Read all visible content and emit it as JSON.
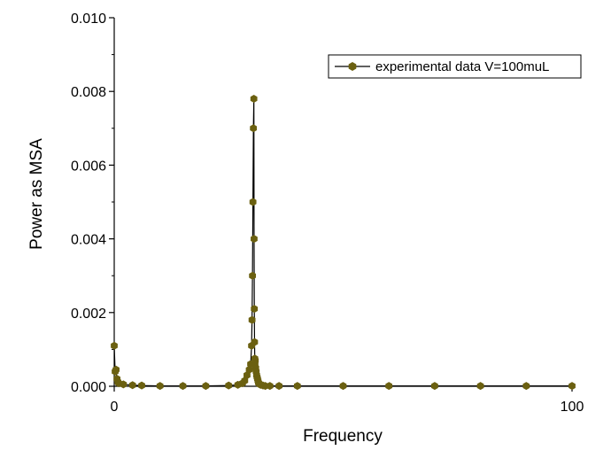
{
  "chart_data": {
    "type": "scatter",
    "title": "",
    "xlabel": "Frequency",
    "ylabel": "Power as MSA",
    "xlim": [
      0,
      100
    ],
    "ylim": [
      0,
      0.01
    ],
    "x_ticks": [
      {
        "value": 0,
        "label": "0"
      },
      {
        "value": 100,
        "label": "100"
      }
    ],
    "y_ticks": [
      {
        "value": 0,
        "label": "0.000"
      },
      {
        "value": 0.002,
        "label": "0.002"
      },
      {
        "value": 0.004,
        "label": "0.004"
      },
      {
        "value": 0.006,
        "label": "0.006"
      },
      {
        "value": 0.008,
        "label": "0.008"
      },
      {
        "value": 0.01,
        "label": "0.010"
      }
    ],
    "grid": false,
    "legend_position": "top-right",
    "series": [
      {
        "name": "experimental data V=100muL",
        "color": "#6b6010",
        "marker": "hexagon",
        "line": true,
        "x": [
          0.0,
          0.2,
          0.4,
          0.6,
          0.8,
          1.0,
          2.0,
          4.0,
          6.0,
          10.0,
          15.0,
          20.0,
          25.0,
          27.0,
          28.0,
          28.5,
          29.0,
          29.5,
          29.8,
          30.0,
          30.1,
          30.2,
          30.3,
          30.4,
          30.5,
          30.55,
          30.6,
          30.65,
          30.7,
          30.75,
          30.8,
          30.9,
          31.0,
          31.1,
          31.2,
          31.3,
          31.4,
          31.5,
          31.6,
          31.8,
          32.0,
          32.5,
          33.0,
          34.0,
          36.0,
          40.0,
          50.0,
          60.0,
          70.0,
          80.0,
          90.0,
          100.0
        ],
        "y": [
          0.0011,
          0.0004,
          0.00045,
          0.0002,
          0.00012,
          8e-05,
          5e-05,
          3e-05,
          2e-05,
          1e-05,
          1e-05,
          1e-05,
          2e-05,
          4e-05,
          8e-05,
          0.00015,
          0.0003,
          0.00045,
          0.0006,
          0.0011,
          0.0018,
          0.003,
          0.005,
          0.007,
          0.0078,
          0.004,
          0.0021,
          0.0012,
          0.00075,
          0.0006,
          0.0007,
          0.0005,
          0.0004,
          0.0003,
          0.00025,
          0.0002,
          0.00015,
          0.0001,
          8e-05,
          5e-05,
          4e-05,
          2e-05,
          1e-05,
          1e-05,
          1e-05,
          1e-05,
          1e-05,
          1e-05,
          1e-05,
          1e-05,
          1e-05,
          1e-05
        ]
      }
    ]
  }
}
